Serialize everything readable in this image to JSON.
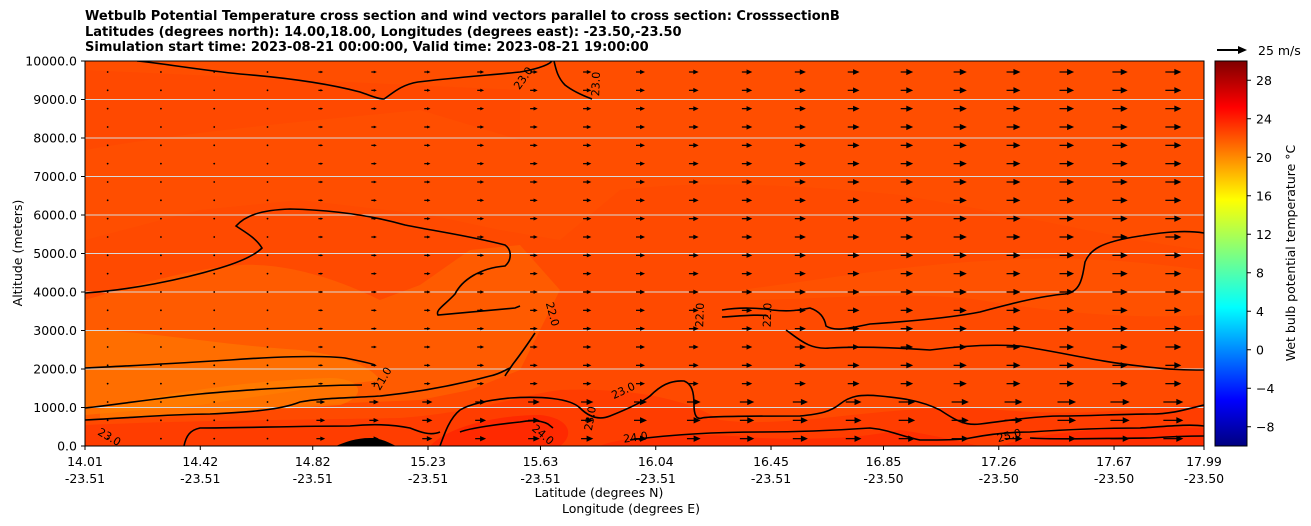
{
  "chart_data": {
    "type": "heatmap",
    "title_lines": [
      "Wetbulb Potential Temperature cross section and wind vectors parallel to cross section: CrosssectionB",
      "Latitudes (degrees north): 14.00,18.00, Longitudes (degrees east): -23.50,-23.50",
      "Simulation start time: 2023-08-21 00:00:00, Valid time: 2023-08-21 19:00:00"
    ],
    "xlabel_lat": "Latitude (degrees N)",
    "xlabel_lon": "Longitude (degrees E)",
    "ylabel": "Altitude (meters)",
    "ylim": [
      0,
      10000
    ],
    "xlim": [
      14.01,
      17.99
    ],
    "x_ticks": [
      {
        "lat": "14.01",
        "lon": "-23.51",
        "value": 14.01
      },
      {
        "lat": "14.42",
        "lon": "-23.51",
        "value": 14.42
      },
      {
        "lat": "14.82",
        "lon": "-23.51",
        "value": 14.82
      },
      {
        "lat": "15.23",
        "lon": "-23.51",
        "value": 15.23
      },
      {
        "lat": "15.63",
        "lon": "-23.51",
        "value": 15.63
      },
      {
        "lat": "16.04",
        "lon": "-23.51",
        "value": 16.04
      },
      {
        "lat": "16.45",
        "lon": "-23.51",
        "value": 16.45
      },
      {
        "lat": "16.85",
        "lon": "-23.50",
        "value": 16.85
      },
      {
        "lat": "17.26",
        "lon": "-23.50",
        "value": 17.26
      },
      {
        "lat": "17.67",
        "lon": "-23.50",
        "value": 17.67
      },
      {
        "lat": "17.99",
        "lon": "-23.50",
        "value": 17.99
      }
    ],
    "y_ticks": [
      {
        "label": "0.0",
        "value": 0
      },
      {
        "label": "1000.0",
        "value": 1000
      },
      {
        "label": "2000.0",
        "value": 2000
      },
      {
        "label": "3000.0",
        "value": 3000
      },
      {
        "label": "4000.0",
        "value": 4000
      },
      {
        "label": "5000.0",
        "value": 5000
      },
      {
        "label": "6000.0",
        "value": 6000
      },
      {
        "label": "7000.0",
        "value": 7000
      },
      {
        "label": "8000.0",
        "value": 8000
      },
      {
        "label": "9000.0",
        "value": 9000
      },
      {
        "label": "10000.0",
        "value": 10000
      }
    ],
    "grid_y": true,
    "colorbar": {
      "label": "Wet bulb potential temperature $^\\circ$C",
      "label_text": "Wet bulb potential temperature °C",
      "range": [
        -10,
        30
      ],
      "ticks": [
        {
          "label": "−8",
          "value": -8
        },
        {
          "label": "−4",
          "value": -4
        },
        {
          "label": "0",
          "value": 0
        },
        {
          "label": "4",
          "value": 4
        },
        {
          "label": "8",
          "value": 8
        },
        {
          "label": "12",
          "value": 12
        },
        {
          "label": "16",
          "value": 16
        },
        {
          "label": "20",
          "value": 20
        },
        {
          "label": "24",
          "value": 24
        },
        {
          "label": "28",
          "value": 28
        }
      ]
    },
    "quiver_key": {
      "label": "25 m/s",
      "value": 25
    },
    "contour_labels": [
      {
        "text": "23.0",
        "x": 15.58,
        "y": 9500,
        "rot": -55
      },
      {
        "text": "23.0",
        "x": 15.84,
        "y": 9400,
        "rot": -88
      },
      {
        "text": "22.0",
        "x": 15.66,
        "y": 3400,
        "rot": 75
      },
      {
        "text": "22.0",
        "x": 16.21,
        "y": 3400,
        "rot": -88
      },
      {
        "text": "22.0",
        "x": 16.45,
        "y": 3400,
        "rot": -88
      },
      {
        "text": "21.0",
        "x": 15.08,
        "y": 1700,
        "rot": -60
      },
      {
        "text": "23.0",
        "x": 15.93,
        "y": 1350,
        "rot": -25
      },
      {
        "text": "23.0",
        "x": 15.82,
        "y": 700,
        "rot": -80
      },
      {
        "text": "24.0",
        "x": 15.63,
        "y": 220,
        "rot": 40
      },
      {
        "text": "24.0",
        "x": 15.97,
        "y": 130,
        "rot": -8
      },
      {
        "text": "23.0",
        "x": 14.09,
        "y": 150,
        "rot": 30
      },
      {
        "text": "25.0",
        "x": 17.3,
        "y": 180,
        "rot": -15
      }
    ]
  }
}
